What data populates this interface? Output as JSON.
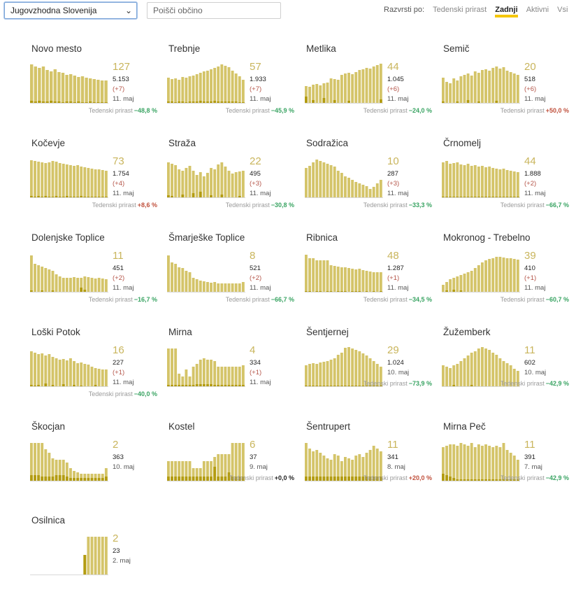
{
  "controls": {
    "region": "Jugovzhodna Slovenija",
    "search_placeholder": "Poišči občino",
    "sort_label": "Razvrsti po:",
    "sort_options": [
      "Tedenski prirast",
      "Zadnji",
      "Aktivni",
      "Vsi"
    ],
    "sort_active": "Zadnji"
  },
  "colors": {
    "bar_light": "#d4c469",
    "bar_dark": "#b39c12",
    "accent": "#f5c70a",
    "big_number": "#c9b55c"
  },
  "trend_label": "Tedenski prirast",
  "municipalities": [
    {
      "name": "Novo mesto",
      "active": "127",
      "total": "5.153",
      "delta": "(+7)",
      "date": "11. maj",
      "trend": "−48,8 %",
      "dir": "down",
      "bars": [
        55,
        52,
        50,
        52,
        47,
        45,
        48,
        44,
        43,
        40,
        41,
        39,
        37,
        38,
        36,
        35,
        34,
        33,
        32,
        32
      ],
      "dark": [
        3,
        2,
        3,
        2,
        2,
        3,
        2,
        2,
        1,
        2,
        2,
        1,
        2,
        1,
        1,
        2,
        1,
        1,
        1,
        1
      ]
    },
    {
      "name": "Trebnje",
      "active": "57",
      "total": "1.933",
      "delta": "(+7)",
      "date": "11. maj",
      "trend": "−45,9 %",
      "dir": "down",
      "bars": [
        36,
        34,
        35,
        33,
        37,
        36,
        38,
        39,
        41,
        43,
        45,
        46,
        48,
        50,
        52,
        55,
        53,
        51,
        46,
        42,
        38,
        33
      ],
      "dark": [
        2,
        2,
        1,
        2,
        2,
        1,
        2,
        2,
        2,
        3,
        2,
        2,
        2,
        3,
        2,
        2,
        2,
        2,
        2,
        2,
        1,
        1
      ]
    },
    {
      "name": "Metlika",
      "active": "44",
      "total": "1.045",
      "delta": "(+6)",
      "date": "11. maj",
      "trend": "−24,0 %",
      "dir": "down",
      "bars": [
        24,
        23,
        26,
        27,
        25,
        28,
        29,
        35,
        34,
        33,
        40,
        42,
        43,
        41,
        44,
        47,
        48,
        50,
        49,
        52,
        54,
        56
      ],
      "dark": [
        9,
        0,
        4,
        0,
        0,
        7,
        0,
        0,
        4,
        0,
        0,
        0,
        3,
        0,
        0,
        0,
        0,
        0,
        0,
        0,
        0,
        5
      ]
    },
    {
      "name": "Semič",
      "active": "20",
      "total": "518",
      "delta": "(+6)",
      "date": "11. maj",
      "trend": "+50,0 %",
      "dir": "up",
      "bars": [
        36,
        30,
        28,
        35,
        32,
        38,
        40,
        42,
        39,
        45,
        43,
        47,
        48,
        46,
        50,
        52,
        49,
        51,
        46,
        44,
        42,
        40
      ],
      "dark": [
        2,
        0,
        0,
        0,
        2,
        0,
        0,
        4,
        0,
        0,
        2,
        0,
        0,
        0,
        0,
        3,
        0,
        0,
        0,
        0,
        0,
        0
      ]
    },
    {
      "name": "Kočevje",
      "active": "73",
      "total": "1.754",
      "delta": "(+4)",
      "date": "11. maj",
      "trend": "+8,6 %",
      "dir": "up",
      "bars": [
        53,
        52,
        51,
        50,
        49,
        50,
        52,
        51,
        49,
        48,
        47,
        46,
        45,
        46,
        44,
        43,
        42,
        41,
        40,
        40,
        39,
        38
      ],
      "dark": [
        2,
        1,
        2,
        1,
        2,
        1,
        1,
        2,
        1,
        1,
        2,
        1,
        1,
        1,
        2,
        1,
        1,
        1,
        1,
        1,
        1,
        1
      ]
    },
    {
      "name": "Straža",
      "active": "22",
      "total": "495",
      "delta": "(+3)",
      "date": "11. maj",
      "trend": "−30,8 %",
      "dir": "down",
      "bars": [
        50,
        48,
        46,
        40,
        38,
        42,
        45,
        38,
        32,
        36,
        30,
        35,
        42,
        40,
        47,
        50,
        44,
        38,
        34,
        36,
        37,
        38
      ],
      "dark": [
        3,
        2,
        0,
        0,
        4,
        0,
        0,
        6,
        0,
        8,
        0,
        0,
        3,
        0,
        0,
        4,
        0,
        0,
        0,
        0,
        2,
        0
      ]
    },
    {
      "name": "Sodražica",
      "active": "10",
      "total": "287",
      "delta": "(+3)",
      "date": "11. maj",
      "trend": "−33,3 %",
      "dir": "down",
      "bars": [
        42,
        45,
        50,
        54,
        52,
        50,
        48,
        46,
        44,
        38,
        35,
        30,
        28,
        25,
        22,
        20,
        18,
        16,
        12,
        15,
        20,
        25
      ],
      "dark": [
        0,
        0,
        0,
        0,
        0,
        0,
        0,
        0,
        0,
        0,
        0,
        0,
        0,
        0,
        0,
        0,
        0,
        0,
        0,
        0,
        0,
        0
      ]
    },
    {
      "name": "Črnomelj",
      "active": "44",
      "total": "1.888",
      "delta": "(+2)",
      "date": "11. maj",
      "trend": "−66,7 %",
      "dir": "down",
      "bars": [
        50,
        52,
        48,
        49,
        50,
        47,
        46,
        48,
        45,
        46,
        44,
        45,
        43,
        44,
        42,
        41,
        40,
        41,
        39,
        38,
        37,
        36
      ],
      "dark": [
        1,
        1,
        1,
        1,
        1,
        1,
        1,
        1,
        1,
        1,
        1,
        1,
        1,
        1,
        1,
        1,
        1,
        1,
        1,
        1,
        1,
        1
      ]
    },
    {
      "name": "Dolenjske Toplice",
      "active": "11",
      "total": "451",
      "delta": "(+2)",
      "date": "11. maj",
      "trend": "−16,7 %",
      "dir": "down",
      "bars": [
        52,
        40,
        38,
        36,
        34,
        32,
        30,
        25,
        22,
        20,
        20,
        20,
        21,
        20,
        20,
        22,
        21,
        20,
        19,
        20,
        19,
        18
      ],
      "dark": [
        2,
        0,
        0,
        2,
        0,
        0,
        2,
        0,
        0,
        0,
        0,
        0,
        0,
        0,
        6,
        3,
        0,
        0,
        0,
        0,
        0,
        0
      ]
    },
    {
      "name": "Šmarješke Toplice",
      "active": "8",
      "total": "521",
      "delta": "(+2)",
      "date": "11. maj",
      "trend": "−66,7 %",
      "dir": "down",
      "bars": [
        52,
        42,
        40,
        35,
        34,
        30,
        28,
        20,
        18,
        16,
        15,
        14,
        13,
        14,
        12,
        12,
        12,
        12,
        12,
        12,
        12,
        14
      ],
      "dark": [
        0,
        0,
        0,
        0,
        0,
        0,
        0,
        0,
        0,
        0,
        0,
        0,
        0,
        0,
        0,
        0,
        0,
        0,
        0,
        0,
        0,
        0
      ]
    },
    {
      "name": "Ribnica",
      "active": "48",
      "total": "1.287",
      "delta": "(+1)",
      "date": "11. maj",
      "trend": "−34,5 %",
      "dir": "down",
      "bars": [
        53,
        48,
        48,
        45,
        45,
        45,
        45,
        38,
        37,
        36,
        35,
        35,
        34,
        33,
        32,
        33,
        31,
        30,
        29,
        28,
        28,
        28
      ],
      "dark": [
        1,
        1,
        0,
        1,
        1,
        0,
        1,
        1,
        0,
        1,
        1,
        1,
        0,
        1,
        1,
        1,
        0,
        1,
        0,
        1,
        0,
        1
      ]
    },
    {
      "name": "Mokronog - Trebelno",
      "active": "39",
      "total": "410",
      "delta": "(+1)",
      "date": "11. maj",
      "trend": "−60,7 %",
      "dir": "down",
      "bars": [
        10,
        14,
        18,
        20,
        22,
        24,
        26,
        28,
        30,
        34,
        38,
        42,
        45,
        47,
        48,
        50,
        50,
        49,
        48,
        48,
        47,
        46
      ],
      "dark": [
        0,
        2,
        0,
        3,
        0,
        2,
        0,
        0,
        0,
        0,
        0,
        0,
        0,
        0,
        0,
        0,
        0,
        0,
        0,
        0,
        0,
        0
      ]
    },
    {
      "name": "Loški Potok",
      "active": "16",
      "total": "227",
      "delta": "(+1)",
      "date": "11. maj",
      "trend": "−40,0 %",
      "dir": "down",
      "bars": [
        50,
        48,
        46,
        47,
        44,
        46,
        42,
        40,
        38,
        39,
        37,
        40,
        36,
        33,
        34,
        32,
        31,
        28,
        26,
        25,
        24,
        24
      ],
      "dark": [
        2,
        1,
        2,
        0,
        4,
        0,
        2,
        0,
        0,
        3,
        0,
        0,
        2,
        0,
        1,
        0,
        0,
        0,
        2,
        0,
        0,
        0
      ]
    },
    {
      "name": "Mirna",
      "active": "4",
      "total": "334",
      "delta": "(+1)",
      "date": "11. maj",
      "trend": "",
      "dir": "zero",
      "bars": [
        54,
        54,
        54,
        18,
        14,
        24,
        14,
        28,
        32,
        38,
        40,
        38,
        38,
        36,
        28,
        28,
        28,
        28,
        28,
        28,
        28,
        30
      ],
      "dark": [
        2,
        2,
        2,
        2,
        2,
        2,
        2,
        2,
        3,
        3,
        3,
        3,
        3,
        2,
        2,
        2,
        2,
        2,
        2,
        2,
        2,
        2
      ]
    },
    {
      "name": "Šentjernej",
      "active": "29",
      "total": "1.024",
      "delta": "",
      "date": "10. maj",
      "trend": "−73,9 %",
      "dir": "down",
      "bars": [
        30,
        32,
        33,
        32,
        34,
        35,
        36,
        38,
        40,
        45,
        48,
        55,
        56,
        54,
        52,
        50,
        47,
        44,
        40,
        36,
        32,
        28
      ],
      "dark": [
        1,
        1,
        1,
        1,
        1,
        1,
        1,
        1,
        1,
        1,
        1,
        1,
        1,
        1,
        1,
        1,
        1,
        1,
        1,
        1,
        1,
        1
      ]
    },
    {
      "name": "Žužemberk",
      "active": "11",
      "total": "602",
      "delta": "",
      "date": "10. maj",
      "trend": "−42,9 %",
      "dir": "down",
      "bars": [
        30,
        28,
        26,
        30,
        32,
        36,
        40,
        44,
        48,
        50,
        54,
        56,
        54,
        52,
        48,
        45,
        40,
        36,
        33,
        30,
        25,
        22
      ],
      "dark": [
        0,
        0,
        0,
        2,
        0,
        0,
        0,
        0,
        2,
        0,
        0,
        0,
        0,
        0,
        0,
        0,
        0,
        0,
        0,
        0,
        0,
        0
      ]
    },
    {
      "name": "Škocjan",
      "active": "2",
      "total": "363",
      "delta": "",
      "date": "10. maj",
      "trend": "",
      "dir": "zero",
      "bars": [
        54,
        54,
        54,
        54,
        45,
        40,
        32,
        30,
        30,
        30,
        26,
        18,
        14,
        12,
        10,
        10,
        10,
        10,
        10,
        10,
        10,
        18
      ],
      "dark": [
        8,
        8,
        8,
        6,
        6,
        6,
        6,
        8,
        8,
        8,
        6,
        4,
        4,
        4,
        4,
        4,
        4,
        4,
        4,
        4,
        4,
        6
      ]
    },
    {
      "name": "Kostel",
      "active": "6",
      "total": "37",
      "delta": "",
      "date": "9. maj",
      "trend": "+0,0 %",
      "dir": "zero",
      "bars": [
        28,
        28,
        28,
        28,
        28,
        28,
        28,
        18,
        18,
        18,
        28,
        28,
        28,
        34,
        38,
        38,
        38,
        38,
        54,
        54,
        54,
        54
      ],
      "dark": [
        6,
        6,
        6,
        6,
        6,
        6,
        6,
        6,
        6,
        6,
        6,
        6,
        6,
        20,
        6,
        6,
        6,
        12,
        6,
        6,
        6,
        6
      ]
    },
    {
      "name": "Šentrupert",
      "active": "11",
      "total": "341",
      "delta": "",
      "date": "8. maj",
      "trend": "+20,0 %",
      "dir": "up",
      "bars": [
        54,
        46,
        42,
        44,
        40,
        36,
        32,
        30,
        38,
        36,
        28,
        34,
        32,
        30,
        36,
        38,
        34,
        40,
        44,
        50,
        46,
        42
      ],
      "dark": [
        6,
        6,
        6,
        6,
        6,
        6,
        6,
        6,
        6,
        6,
        6,
        6,
        6,
        6,
        6,
        6,
        6,
        6,
        6,
        6,
        6,
        6
      ]
    },
    {
      "name": "Mirna Peč",
      "active": "11",
      "total": "391",
      "delta": "",
      "date": "7. maj",
      "trend": "−42,9 %",
      "dir": "down",
      "bars": [
        48,
        50,
        52,
        52,
        50,
        54,
        52,
        50,
        54,
        48,
        52,
        50,
        52,
        50,
        48,
        50,
        48,
        54,
        44,
        40,
        36,
        30
      ],
      "dark": [
        10,
        8,
        6,
        4,
        2,
        2,
        2,
        2,
        2,
        2,
        2,
        2,
        2,
        2,
        2,
        2,
        2,
        2,
        2,
        2,
        2,
        2
      ]
    },
    {
      "name": "Osilnica",
      "active": "2",
      "total": "23",
      "delta": "",
      "date": "2. maj",
      "trend": "",
      "dir": "zero",
      "bars": [
        0,
        0,
        0,
        0,
        0,
        0,
        0,
        0,
        0,
        0,
        0,
        0,
        0,
        0,
        0,
        28,
        54,
        54,
        54,
        54,
        54,
        54
      ],
      "dark": [
        0,
        0,
        0,
        0,
        0,
        0,
        0,
        0,
        0,
        0,
        0,
        0,
        0,
        0,
        0,
        28,
        0,
        0,
        0,
        0,
        0,
        0
      ]
    }
  ]
}
